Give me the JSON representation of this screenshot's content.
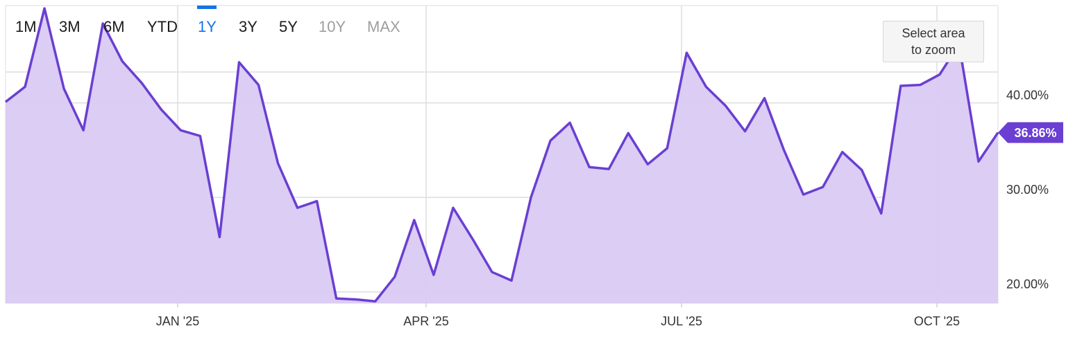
{
  "range_selector": {
    "tabs": [
      {
        "label": "1M",
        "state": "normal"
      },
      {
        "label": "3M",
        "state": "normal"
      },
      {
        "label": "6M",
        "state": "normal"
      },
      {
        "label": "YTD",
        "state": "normal"
      },
      {
        "label": "1Y",
        "state": "active"
      },
      {
        "label": "3Y",
        "state": "normal"
      },
      {
        "label": "5Y",
        "state": "normal"
      },
      {
        "label": "10Y",
        "state": "disabled"
      },
      {
        "label": "MAX",
        "state": "disabled"
      }
    ]
  },
  "zoom_hint": {
    "line1": "Select area",
    "line2": "to zoom"
  },
  "colors": {
    "line": "#6a3fd1",
    "fill": "#d9caf3",
    "accent_tab": "#1473e6",
    "grid": "#dddddd",
    "badge": "#6a3fd1"
  },
  "chart_data": {
    "type": "area",
    "x_tick_labels": [
      "JAN '25",
      "APR '25",
      "JUL '25",
      "OCT '25"
    ],
    "y_tick_labels": [
      "20.00%",
      "30.00%",
      "40.00%"
    ],
    "y_ticks": [
      20,
      30,
      40
    ],
    "ylim": [
      18.8,
      50.3
    ],
    "current_value_label": "36.86%",
    "current_value": 36.86,
    "grid": true,
    "series": [
      {
        "values": [
          40.1,
          41.7,
          50.0,
          41.5,
          37.1,
          48.4,
          44.4,
          42.1,
          39.3,
          37.1,
          36.5,
          25.8,
          44.3,
          41.9,
          33.6,
          28.9,
          29.6,
          19.3,
          19.2,
          19.0,
          21.6,
          27.6,
          21.8,
          28.9,
          25.6,
          22.1,
          21.2,
          30.0,
          36.0,
          37.9,
          33.2,
          33.0,
          36.8,
          33.5,
          35.2,
          45.3,
          41.7,
          39.7,
          37.0,
          40.5,
          35.0,
          30.3,
          31.1,
          34.8,
          32.9,
          28.3,
          41.8,
          41.9,
          43.0,
          46.2,
          33.8,
          36.86
        ]
      }
    ]
  }
}
